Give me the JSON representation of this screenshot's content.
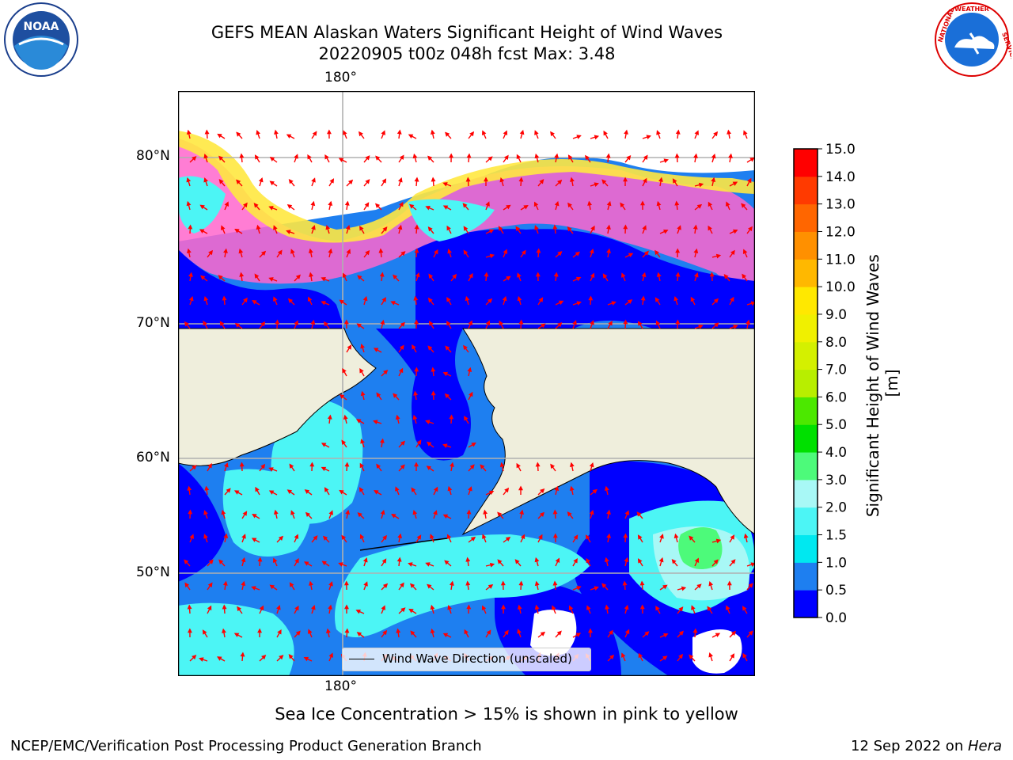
{
  "title": {
    "line1": "GEFS MEAN Alaskan Waters Significant Height of Wind Waves",
    "line2": "20220905 t00z 048h fcst   Max: 3.48"
  },
  "logos": {
    "left": "NOAA",
    "left_ring": "NATIONAL OCEANIC AND ATMOSPHERIC ADMINISTRATION · U.S. DEPARTMENT OF COMMERCE",
    "right_ring": "NATIONAL WEATHER SERVICE"
  },
  "axes": {
    "lon_top": "180°",
    "lon_bottom": "180°",
    "lat_labels": [
      "80°N",
      "70°N",
      "60°N",
      "50°N"
    ]
  },
  "legend": {
    "label": "Wind Wave Direction (unscaled)"
  },
  "colorbar": {
    "label": "Significant Height of Wind Waves [m]",
    "ticks": [
      "0.0",
      "0.5",
      "1.0",
      "1.5",
      "2.0",
      "3.0",
      "4.0",
      "5.0",
      "6.0",
      "7.0",
      "8.0",
      "9.0",
      "10.0",
      "11.0",
      "12.0",
      "13.0",
      "14.0",
      "15.0"
    ],
    "colors": [
      "#0000ff",
      "#1e7ff0",
      "#00e8f0",
      "#4cf5f5",
      "#a8f8f6",
      "#4dfa7a",
      "#00e000",
      "#4ce800",
      "#b8ee00",
      "#d4f000",
      "#f0f000",
      "#ffe800",
      "#ffb800",
      "#ff9000",
      "#ff6600",
      "#ff3a00",
      "#ff0000"
    ]
  },
  "notes": {
    "sea_ice": "Sea Ice Concentration > 15% is shown in pink to yellow",
    "footer_left": "NCEP/EMC/Verification Post Processing Product Generation Branch",
    "footer_right_date": "12 Sep 2022 on ",
    "footer_right_host": "Hera"
  },
  "colors": {
    "land": "#efeedc",
    "wave_low": "#0000ff",
    "wave_mid": "#1e7ff0",
    "wave_hi": "#4cf5f5",
    "arrow": "#ff0000",
    "ice_pink": "#ff66cc",
    "ice_yellow": "#ffe840"
  }
}
